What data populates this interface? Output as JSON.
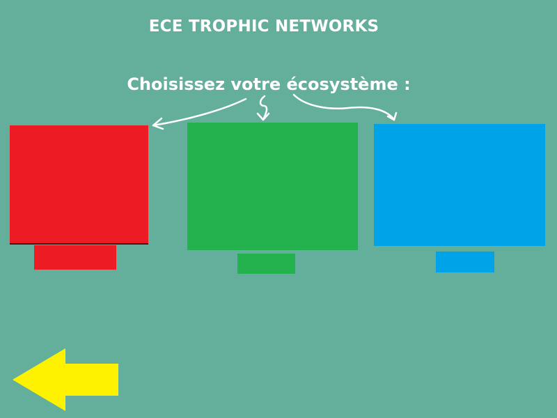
{
  "header": {
    "title": "ECE TROPHIC NETWORKS",
    "subtitle": "Choisissez votre écosystème :"
  },
  "ecosystems": [
    {
      "id": "red",
      "color": "#ed1c24",
      "label": ""
    },
    {
      "id": "green",
      "color": "#22b14c",
      "label": ""
    },
    {
      "id": "blue",
      "color": "#00a2e8",
      "label": ""
    }
  ],
  "back_button": {
    "icon": "arrow-left-icon",
    "color": "#fff200"
  },
  "colors": {
    "background": "#64ae9c",
    "text": "#ffffff"
  }
}
